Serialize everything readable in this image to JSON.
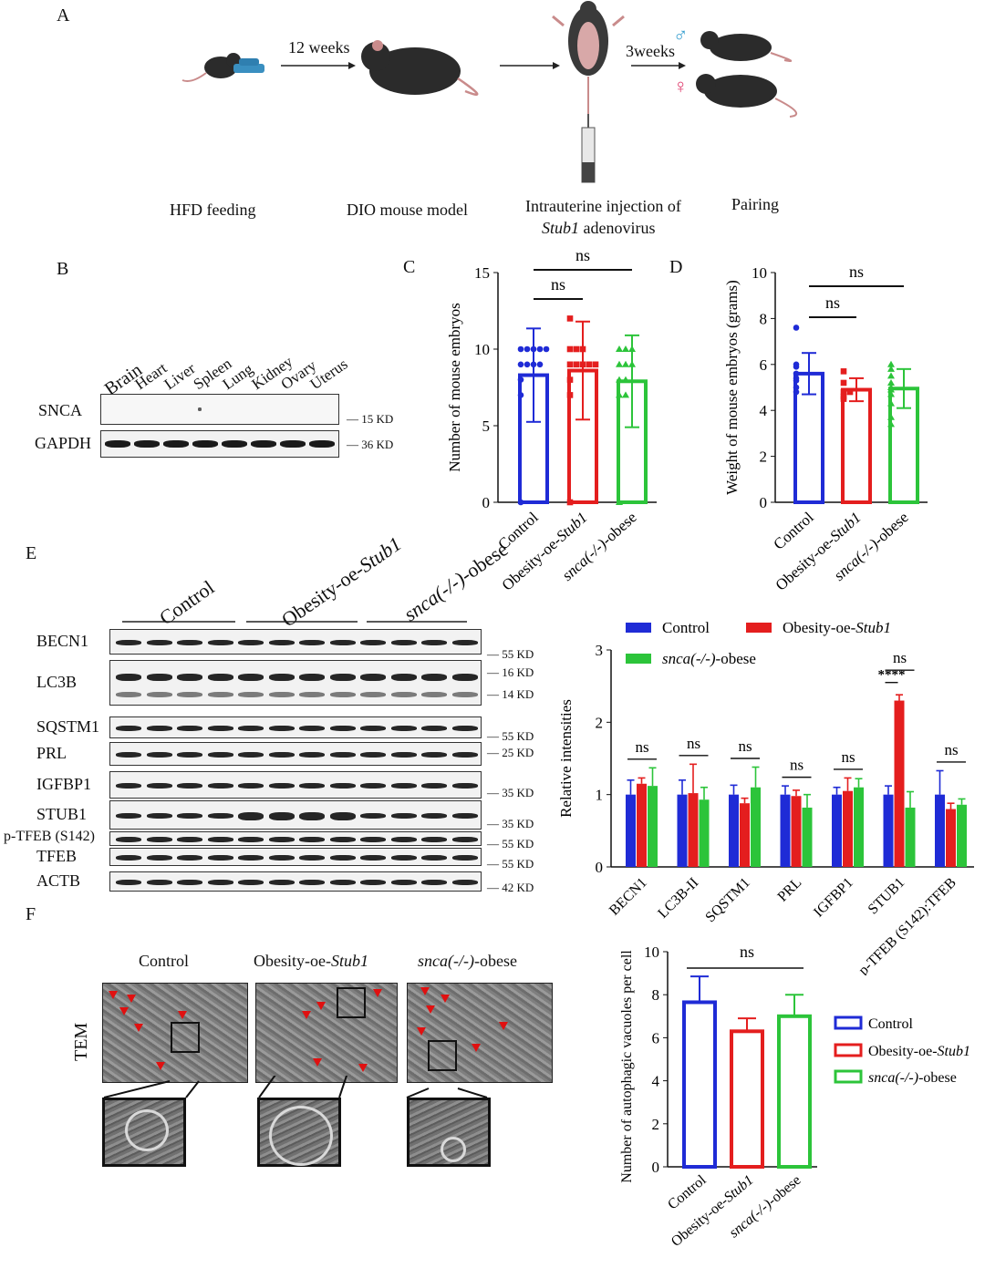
{
  "panels": {
    "A": "A",
    "B": "B",
    "C": "C",
    "D": "D",
    "E": "E",
    "F": "F"
  },
  "workflow": {
    "arrow1_label": "12 weeks",
    "arrow3_label": "3weeks",
    "male_symbol": "♂",
    "female_symbol": "♀",
    "step1": "HFD feeding",
    "step2": "DIO mouse model",
    "step3_line1": "Intrauterine injection of",
    "step3_gene": "Stub1",
    "step3_line2_rest": " adenovirus",
    "step4": "Pairing",
    "colors": {
      "male": "#3aa0d0",
      "female": "#e04070",
      "mouse": "#2b2b2b",
      "tail": "#c98b8b",
      "food": "#3a8fc0"
    }
  },
  "blot_b": {
    "tissues": [
      "Brain",
      "Heart",
      "Liver",
      "Spleen",
      "Lung",
      "Kidney",
      "Ovary",
      "Uterus"
    ],
    "rows": [
      {
        "label": "SNCA",
        "kd": "15 KD"
      },
      {
        "label": "GAPDH",
        "kd": "36 KD"
      }
    ]
  },
  "blot_e": {
    "groups": [
      {
        "label": "Control",
        "italic_part": ""
      },
      {
        "label": "Obesity-oe-",
        "italic_part": "Stub1"
      },
      {
        "label": "",
        "italic_part": "snca(-/-)",
        "suffix": "-obese"
      }
    ],
    "rows": [
      {
        "label": "BECN1",
        "kd": [
          "55 KD"
        ]
      },
      {
        "label": "LC3B",
        "kd": [
          "16 KD",
          "14 KD"
        ]
      },
      {
        "label": "SQSTM1",
        "kd": [
          "55 KD"
        ]
      },
      {
        "label": "PRL",
        "kd": [
          "25 KD"
        ]
      },
      {
        "label": "IGFBP1",
        "kd": [
          "35 KD"
        ]
      },
      {
        "label": "STUB1",
        "kd": [
          "35 KD"
        ]
      },
      {
        "label": "p-TFEB (S142)",
        "kd": [
          "55 KD"
        ]
      },
      {
        "label": "TFEB",
        "kd": [
          "55 KD"
        ]
      },
      {
        "label": "ACTB",
        "kd": [
          "42 KD"
        ]
      }
    ]
  },
  "tem": {
    "side_label": "TEM",
    "groups": [
      {
        "label": "Control",
        "italic": ""
      },
      {
        "label": "Obesity-oe-",
        "italic": "Stub1"
      },
      {
        "label": "",
        "italic": "snca(-/-)",
        "suffix": "-obese"
      }
    ]
  },
  "legend": {
    "control": "Control",
    "oe_prefix": "Obesity-oe-",
    "oe_italic": "Stub1",
    "ko_italic": "snca(-/-)",
    "ko_suffix": "-obese"
  },
  "colors": {
    "control": "#1f2bd6",
    "oe": "#e41e1e",
    "ko": "#2cc43a"
  },
  "chart_data": [
    {
      "panel": "C",
      "type": "bar",
      "categories": [
        "Control",
        "Obesity-oe-Stub1",
        "snca(-/-)-obese"
      ],
      "values": [
        8.3,
        8.6,
        7.9
      ],
      "errors": [
        3.05,
        3.2,
        3.0
      ],
      "points": [
        [
          10,
          10,
          10,
          10,
          10,
          9,
          9,
          9,
          9,
          8,
          7,
          0
        ],
        [
          12,
          10,
          10,
          10,
          9,
          9,
          9,
          9,
          9,
          8,
          7,
          0
        ],
        [
          10,
          10,
          10,
          9,
          9,
          9,
          8,
          8,
          7,
          7,
          0
        ]
      ],
      "ylabel": "Number of mouse embryos",
      "ylim": [
        0,
        15
      ],
      "yticks": [
        0,
        5,
        10,
        15
      ],
      "significance": [
        {
          "from": 0,
          "to": 1,
          "label": "ns"
        },
        {
          "from": 0,
          "to": 2,
          "label": "ns"
        }
      ]
    },
    {
      "panel": "D",
      "type": "bar",
      "categories": [
        "Control",
        "Obesity-oe-Stub1",
        "snca(-/-)-obese"
      ],
      "values": [
        5.6,
        4.9,
        4.95
      ],
      "errors": [
        0.9,
        0.5,
        0.85
      ],
      "points": [
        [
          7.6,
          6.0,
          5.9,
          5.6,
          5.4,
          5.3,
          5.0,
          4.8
        ],
        [
          5.7,
          5.2,
          4.8,
          4.8,
          4.6,
          4.5
        ],
        [
          6.0,
          5.8,
          5.5,
          5.2,
          5.0,
          4.9,
          4.7,
          4.3,
          3.7,
          3.4
        ]
      ],
      "ylabel": "Weight of mouse embryos (grams)",
      "ylim": [
        0,
        10
      ],
      "yticks": [
        0,
        2,
        4,
        6,
        8,
        10
      ],
      "significance": [
        {
          "from": 0,
          "to": 1,
          "label": "ns"
        },
        {
          "from": 0,
          "to": 2,
          "label": "ns"
        }
      ]
    },
    {
      "panel": "E",
      "type": "bar",
      "categories": [
        "BECN1",
        "LC3B-II",
        "SQSTM1",
        "PRL",
        "IGFBP1",
        "STUB1",
        "p-TFEB (S142):TFEB"
      ],
      "series": [
        {
          "name": "Control",
          "values": [
            1.0,
            1.0,
            1.0,
            1.0,
            1.0,
            1.0,
            1.0
          ],
          "errors": [
            0.2,
            0.2,
            0.13,
            0.12,
            0.1,
            0.12,
            0.33
          ]
        },
        {
          "name": "Obesity-oe-Stub1",
          "values": [
            1.15,
            1.02,
            0.88,
            0.98,
            1.05,
            2.3,
            0.8
          ],
          "errors": [
            0.08,
            0.4,
            0.07,
            0.08,
            0.18,
            0.08,
            0.08
          ]
        },
        {
          "name": "snca(-/-)-obese",
          "values": [
            1.12,
            0.93,
            1.1,
            0.82,
            1.1,
            0.82,
            0.86
          ],
          "errors": [
            0.25,
            0.17,
            0.28,
            0.18,
            0.12,
            0.22,
            0.08
          ]
        }
      ],
      "ylabel": "Relative intensities",
      "ylim": [
        0,
        3
      ],
      "yticks": [
        0,
        1,
        2,
        3
      ],
      "significance": [
        {
          "category": 0,
          "label": "ns"
        },
        {
          "category": 1,
          "label": "ns"
        },
        {
          "category": 2,
          "label": "ns"
        },
        {
          "category": 3,
          "label": "ns"
        },
        {
          "category": 4,
          "label": "ns"
        },
        {
          "category": 5,
          "label": "****",
          "pair": "control-oe"
        },
        {
          "category": 5,
          "label": "ns",
          "pair": "control-ko"
        },
        {
          "category": 6,
          "label": "ns"
        }
      ],
      "legend": "top"
    },
    {
      "panel": "F",
      "type": "bar",
      "categories": [
        "Control",
        "Obesity-oe-Stub1",
        "snca(-/-)-obese"
      ],
      "values": [
        7.65,
        6.3,
        7.0
      ],
      "errors": [
        1.2,
        0.6,
        1.0
      ],
      "ylabel": "Number of autophagic vacuoles  per cell",
      "ylim": [
        0,
        10
      ],
      "yticks": [
        0,
        2,
        4,
        6,
        8,
        10
      ],
      "significance": [
        {
          "from": 0,
          "to": 2,
          "label": "ns"
        }
      ],
      "legend": "right"
    }
  ]
}
